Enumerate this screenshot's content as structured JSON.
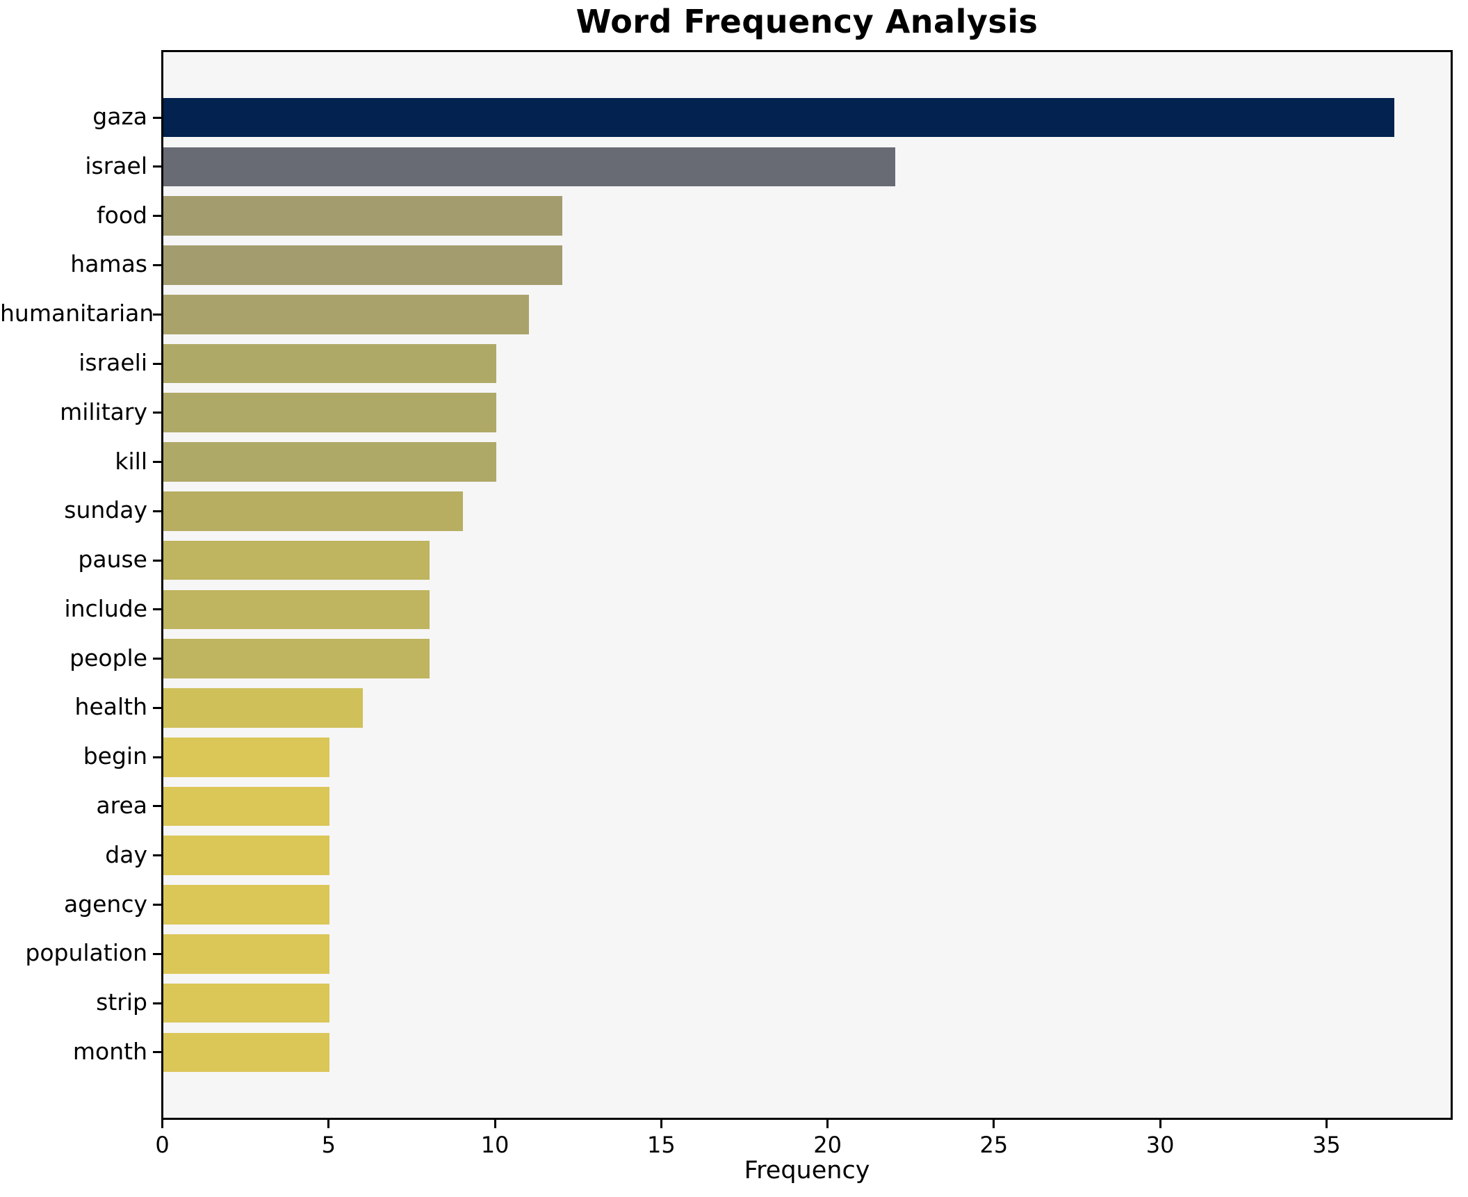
{
  "chart_data": {
    "type": "bar",
    "orientation": "horizontal",
    "title": "Word Frequency Analysis",
    "xlabel": "Frequency",
    "ylabel": "",
    "categories": [
      "gaza",
      "israel",
      "food",
      "hamas",
      "humanitarian",
      "israeli",
      "military",
      "kill",
      "sunday",
      "pause",
      "include",
      "people",
      "health",
      "begin",
      "area",
      "day",
      "agency",
      "population",
      "strip",
      "month"
    ],
    "values": [
      37,
      22,
      12,
      12,
      11,
      10,
      10,
      10,
      9,
      8,
      8,
      8,
      6,
      5,
      5,
      5,
      5,
      5,
      5,
      5
    ],
    "bar_colors": [
      "#03224F",
      "#686B73",
      "#A39C6E",
      "#A39C6E",
      "#A9A36B",
      "#AFA967",
      "#AFA967",
      "#AFA967",
      "#B7AE62",
      "#BFB45F",
      "#BFB45F",
      "#BFB45F",
      "#CFC05A",
      "#DBC658",
      "#DBC658",
      "#DBC658",
      "#DBC658",
      "#DBC658",
      "#DBC658",
      "#DBC658"
    ],
    "xlim": [
      0,
      38.7
    ],
    "xticks": [
      0,
      5,
      10,
      15,
      20,
      25,
      30,
      35
    ],
    "grid": false,
    "legend": null,
    "colormap": "cividis (value-mapped, high=dark navy, low=yellow)",
    "plot_background": "#F6F6F7",
    "figure_background": "#FFFFFF",
    "spine_color": "#000000",
    "text_color": "#000000"
  }
}
